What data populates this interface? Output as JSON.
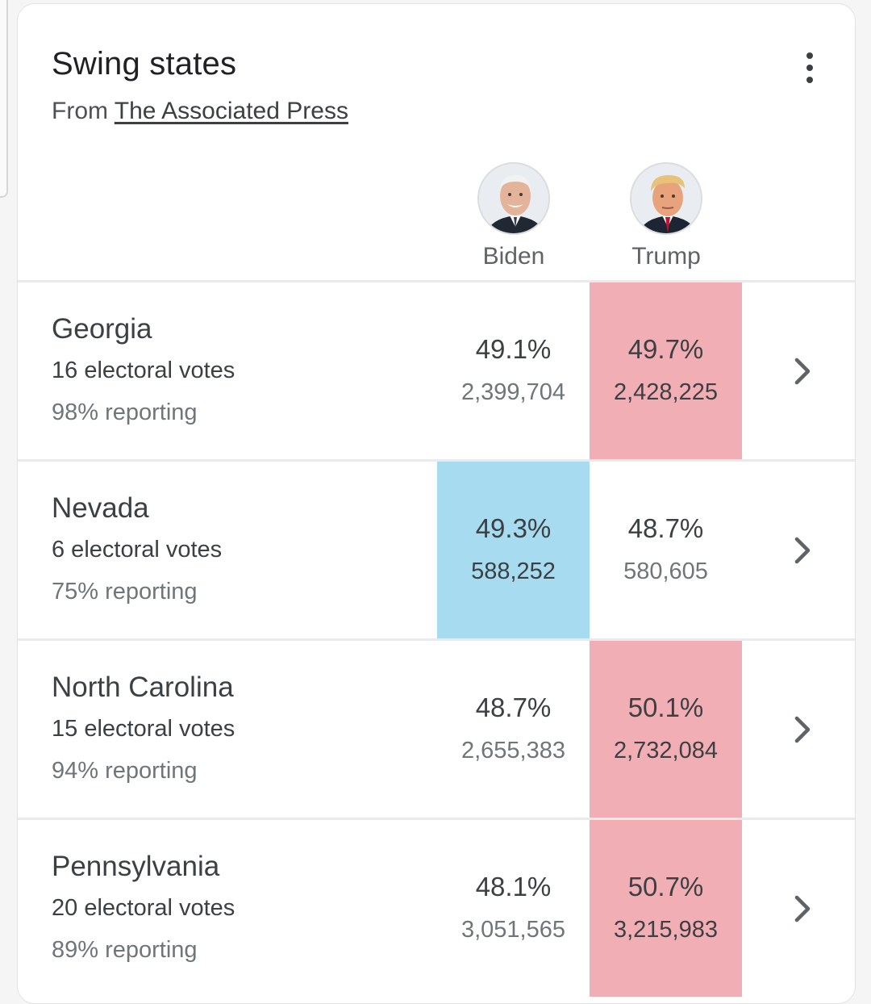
{
  "card": {
    "title": "Swing states",
    "source_prefix": "From ",
    "source_link": "The Associated Press"
  },
  "candidates": [
    {
      "name": "Biden",
      "color": "#a7dbf0"
    },
    {
      "name": "Trump",
      "color": "#f1aeb5"
    }
  ],
  "states": [
    {
      "name": "Georgia",
      "electoral_votes": "16 electoral votes",
      "reporting": "98% reporting",
      "biden": {
        "pct": "49.1%",
        "votes": "2,399,704"
      },
      "trump": {
        "pct": "49.7%",
        "votes": "2,428,225"
      },
      "leader": "trump"
    },
    {
      "name": "Nevada",
      "electoral_votes": "6 electoral votes",
      "reporting": "75% reporting",
      "biden": {
        "pct": "49.3%",
        "votes": "588,252"
      },
      "trump": {
        "pct": "48.7%",
        "votes": "580,605"
      },
      "leader": "biden"
    },
    {
      "name": "North Carolina",
      "electoral_votes": "15 electoral votes",
      "reporting": "94% reporting",
      "biden": {
        "pct": "48.7%",
        "votes": "2,655,383"
      },
      "trump": {
        "pct": "50.1%",
        "votes": "2,732,084"
      },
      "leader": "trump"
    },
    {
      "name": "Pennsylvania",
      "electoral_votes": "20 electoral votes",
      "reporting": "89% reporting",
      "biden": {
        "pct": "48.1%",
        "votes": "3,051,565"
      },
      "trump": {
        "pct": "50.7%",
        "votes": "3,215,983"
      },
      "leader": "trump"
    }
  ],
  "icons": {
    "menu": "more-vert-icon",
    "row_action": "chevron-right-icon"
  }
}
